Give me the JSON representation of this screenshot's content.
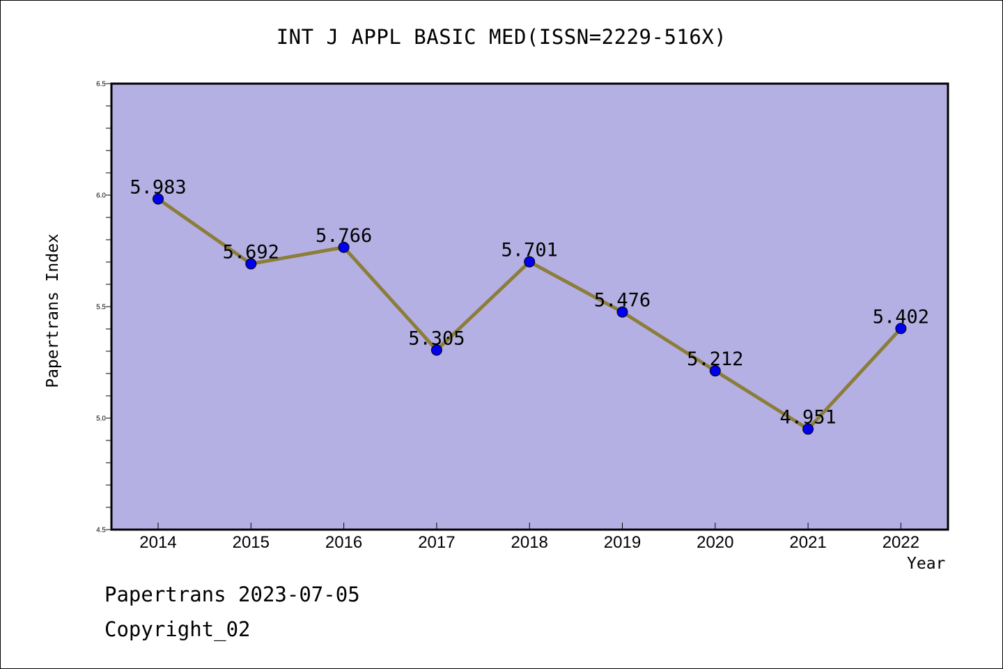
{
  "chart_data": {
    "type": "line",
    "title": "INT J APPL BASIC MED(ISSN=2229-516X)",
    "xlabel": "Year",
    "ylabel": "Papertrans Index",
    "categories": [
      "2014",
      "2015",
      "2016",
      "2017",
      "2018",
      "2019",
      "2020",
      "2021",
      "2022"
    ],
    "values": [
      5.983,
      5.692,
      5.766,
      5.305,
      5.701,
      5.476,
      5.212,
      4.951,
      5.402
    ],
    "data_labels": [
      "5.983",
      "5.692",
      "5.766",
      "5.305",
      "5.701",
      "5.476",
      "5.212",
      "4.951",
      "5.402"
    ],
    "ylim": [
      4.5,
      6.5
    ],
    "yticks": [
      "4.5",
      "5.0",
      "5.5",
      "6.0",
      "6.5"
    ],
    "grid": false,
    "colors": {
      "plot_background": "#b5b0e3",
      "line": "#8b7d3a",
      "marker": "#0000ee"
    }
  },
  "footer": {
    "line1": "Papertrans 2023-07-05",
    "line2": "Copyright_02"
  }
}
